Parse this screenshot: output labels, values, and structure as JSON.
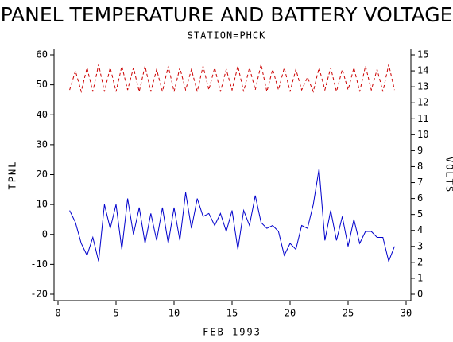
{
  "chart_data": {
    "type": "line",
    "title": "PANEL TEMPERATURE AND BATTERY VOLTAGE",
    "subtitle": "STATION=PHCK",
    "x_label": "FEB 1993",
    "y_label": "TPNL",
    "y2_label": "VOLTS",
    "x": [
      1,
      1.5,
      2,
      2.5,
      3,
      3.5,
      4,
      4.5,
      5,
      5.5,
      6,
      6.5,
      7,
      7.5,
      8,
      8.5,
      9,
      9.5,
      10,
      10.5,
      11,
      11.5,
      12,
      12.5,
      13,
      13.5,
      14,
      14.5,
      15,
      15.5,
      16,
      16.5,
      17,
      17.5,
      18,
      18.5,
      19,
      19.5,
      20,
      20.5,
      21,
      21.5,
      22,
      22.5,
      23,
      23.5,
      24,
      24.5,
      25,
      25.5,
      26,
      26.5,
      27,
      27.5,
      28,
      28.5,
      29
    ],
    "series": [
      {
        "name": "TPNL",
        "color": "#0000cc",
        "values": [
          8,
          4,
          -3,
          -7,
          -1,
          -9,
          10,
          2,
          10,
          -5,
          12,
          0,
          9,
          -3,
          7,
          -2,
          9,
          -3,
          9,
          -2,
          14,
          2,
          12,
          6,
          7,
          3,
          7,
          1,
          8,
          -5,
          8,
          3,
          13,
          4,
          2,
          3,
          1,
          -7,
          -3,
          -5,
          3,
          2,
          10,
          22,
          -2,
          8,
          -2,
          6,
          -4,
          5,
          -3,
          1,
          1,
          -1,
          -1,
          -9,
          -4
        ]
      },
      {
        "name": "VOLTS",
        "color": "#cc0000",
        "axis": "y2",
        "dashed": true,
        "values": [
          12.8,
          14.0,
          12.7,
          14.2,
          12.7,
          14.4,
          12.7,
          14.2,
          12.7,
          14.3,
          12.8,
          14.2,
          12.7,
          14.3,
          12.7,
          14.1,
          12.7,
          14.3,
          12.7,
          14.2,
          12.8,
          14.1,
          12.7,
          14.3,
          12.8,
          14.2,
          12.7,
          14.1,
          12.8,
          14.3,
          12.7,
          14.2,
          12.8,
          14.4,
          12.7,
          14.1,
          12.8,
          14.2,
          12.7,
          14.1,
          12.8,
          13.6,
          12.7,
          14.2,
          12.8,
          14.2,
          12.7,
          14.1,
          12.8,
          14.2,
          12.7,
          14.3,
          12.8,
          14.1,
          12.7,
          14.4,
          12.8
        ]
      }
    ],
    "xlim": [
      0,
      30
    ],
    "xticks": [
      0,
      5,
      10,
      15,
      20,
      25,
      30
    ],
    "ylim": [
      -20,
      60
    ],
    "yticks": [
      -20,
      -10,
      0,
      10,
      20,
      30,
      40,
      50,
      60
    ],
    "y2lim": [
      0,
      15
    ],
    "y2ticks": [
      0,
      1,
      2,
      3,
      4,
      5,
      6,
      7,
      8,
      9,
      10,
      11,
      12,
      13,
      14,
      15
    ]
  }
}
